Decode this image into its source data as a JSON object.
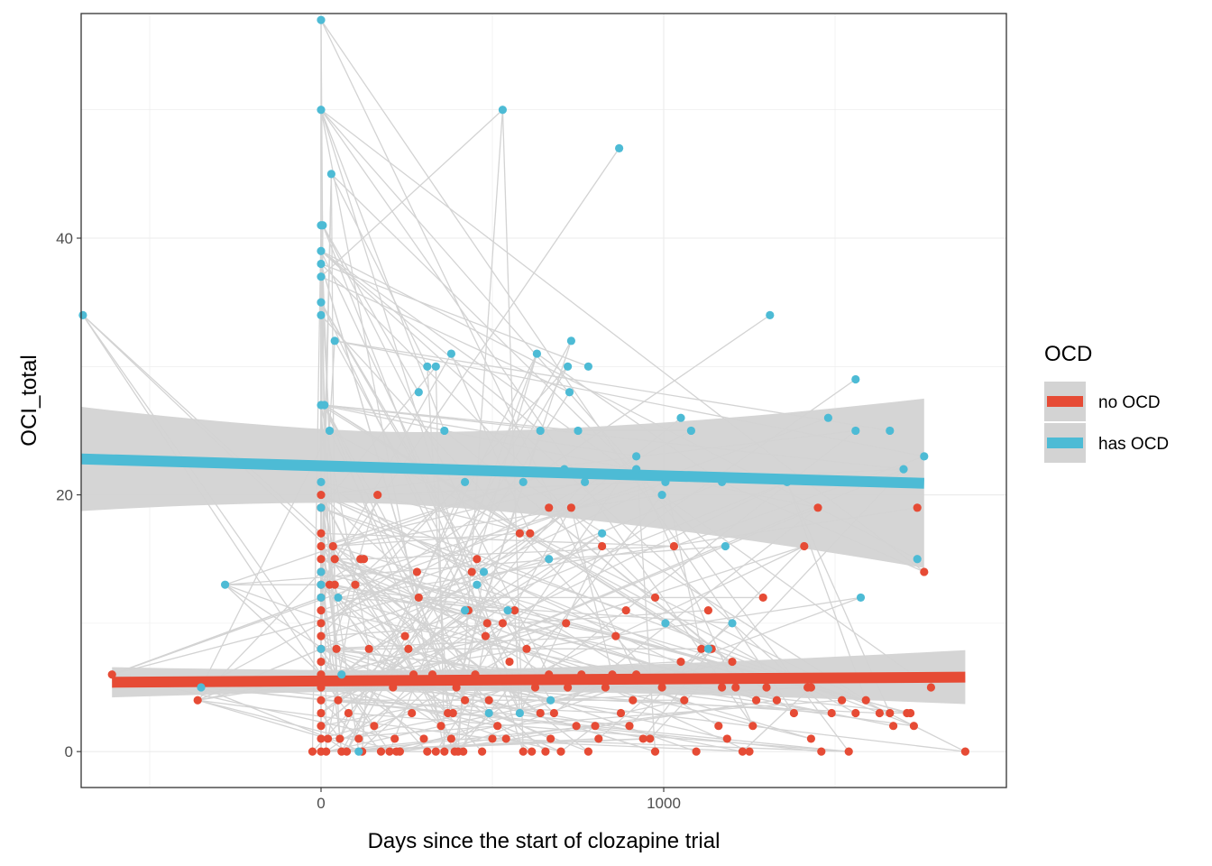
{
  "chart_data": {
    "type": "scatter",
    "xlabel": "Days since the start of clozapine trial",
    "ylabel": "OCI_total",
    "xlim": [
      -700,
      2000
    ],
    "ylim": [
      -2.8,
      57.5
    ],
    "x_ticks": [
      0,
      1000
    ],
    "y_ticks": [
      0,
      20,
      40
    ],
    "grid": true,
    "legend": {
      "title": "OCD",
      "position": "right",
      "entries": [
        {
          "label": "no OCD",
          "color": "#E64B35"
        },
        {
          "label": "has OCD",
          "color": "#4DBBD5"
        }
      ]
    },
    "colors": {
      "no_ocd": "#E64B35",
      "has_ocd": "#4DBBD5",
      "connector": "#D3D3D3",
      "ribbon": "#D3D3D3"
    },
    "series": [
      {
        "name": "has OCD",
        "color": "#4DBBD5",
        "points": [
          [
            -695,
            34
          ],
          [
            -350,
            5
          ],
          [
            -280,
            13
          ],
          [
            0,
            57
          ],
          [
            0,
            50
          ],
          [
            0,
            41
          ],
          [
            5,
            41
          ],
          [
            0,
            39
          ],
          [
            0,
            38
          ],
          [
            0,
            37
          ],
          [
            0,
            35
          ],
          [
            0,
            34
          ],
          [
            0,
            27
          ],
          [
            10,
            27
          ],
          [
            30,
            45
          ],
          [
            40,
            32
          ],
          [
            25,
            25
          ],
          [
            0,
            21
          ],
          [
            0,
            19
          ],
          [
            0,
            14
          ],
          [
            0,
            13
          ],
          [
            0,
            12
          ],
          [
            0,
            8
          ],
          [
            50,
            12
          ],
          [
            60,
            6
          ],
          [
            110,
            0
          ],
          [
            285,
            28
          ],
          [
            310,
            30
          ],
          [
            335,
            30
          ],
          [
            360,
            25
          ],
          [
            380,
            31
          ],
          [
            420,
            21
          ],
          [
            420,
            11
          ],
          [
            455,
            13
          ],
          [
            475,
            14
          ],
          [
            490,
            3
          ],
          [
            530,
            50
          ],
          [
            545,
            11
          ],
          [
            580,
            3
          ],
          [
            590,
            21
          ],
          [
            630,
            31
          ],
          [
            640,
            25
          ],
          [
            665,
            15
          ],
          [
            670,
            4
          ],
          [
            710,
            22
          ],
          [
            720,
            30
          ],
          [
            725,
            28
          ],
          [
            730,
            32
          ],
          [
            750,
            25
          ],
          [
            770,
            21
          ],
          [
            780,
            30
          ],
          [
            820,
            17
          ],
          [
            870,
            47
          ],
          [
            920,
            22
          ],
          [
            920,
            23
          ],
          [
            995,
            20
          ],
          [
            1005,
            10
          ],
          [
            1005,
            21
          ],
          [
            1050,
            26
          ],
          [
            1080,
            25
          ],
          [
            1130,
            8
          ],
          [
            1170,
            21
          ],
          [
            1180,
            16
          ],
          [
            1200,
            10
          ],
          [
            1310,
            34
          ],
          [
            1360,
            21
          ],
          [
            1480,
            26
          ],
          [
            1560,
            25
          ],
          [
            1560,
            29
          ],
          [
            1575,
            12
          ],
          [
            1660,
            25
          ],
          [
            1700,
            22
          ],
          [
            1740,
            15
          ],
          [
            1760,
            23
          ]
        ],
        "trend": {
          "x0": -700,
          "y0": 22.8,
          "x1": 1760,
          "y1": 20.9,
          "se0": 6.2,
          "se1": 6.6
        }
      },
      {
        "name": "no OCD",
        "color": "#E64B35",
        "points": [
          [
            -610,
            6
          ],
          [
            -360,
            4
          ],
          [
            -25,
            0
          ],
          [
            0,
            20
          ],
          [
            0,
            19
          ],
          [
            0,
            17
          ],
          [
            0,
            16
          ],
          [
            0,
            15
          ],
          [
            0,
            14
          ],
          [
            0,
            13
          ],
          [
            0,
            12
          ],
          [
            0,
            11
          ],
          [
            0,
            10
          ],
          [
            0,
            9
          ],
          [
            0,
            8
          ],
          [
            0,
            7
          ],
          [
            0,
            6
          ],
          [
            0,
            5
          ],
          [
            0,
            4
          ],
          [
            0,
            3
          ],
          [
            0,
            2
          ],
          [
            0,
            1
          ],
          [
            0,
            0
          ],
          [
            15,
            0
          ],
          [
            20,
            1
          ],
          [
            25,
            13
          ],
          [
            35,
            16
          ],
          [
            40,
            15
          ],
          [
            40,
            13
          ],
          [
            45,
            8
          ],
          [
            50,
            4
          ],
          [
            55,
            1
          ],
          [
            60,
            0
          ],
          [
            75,
            0
          ],
          [
            80,
            3
          ],
          [
            100,
            13
          ],
          [
            110,
            1
          ],
          [
            115,
            15
          ],
          [
            120,
            0
          ],
          [
            125,
            15
          ],
          [
            140,
            8
          ],
          [
            155,
            2
          ],
          [
            165,
            20
          ],
          [
            175,
            0
          ],
          [
            200,
            0
          ],
          [
            210,
            5
          ],
          [
            215,
            1
          ],
          [
            220,
            0
          ],
          [
            230,
            0
          ],
          [
            245,
            9
          ],
          [
            255,
            8
          ],
          [
            265,
            3
          ],
          [
            270,
            6
          ],
          [
            280,
            14
          ],
          [
            285,
            12
          ],
          [
            300,
            1
          ],
          [
            310,
            0
          ],
          [
            325,
            6
          ],
          [
            335,
            0
          ],
          [
            350,
            2
          ],
          [
            360,
            0
          ],
          [
            370,
            3
          ],
          [
            380,
            1
          ],
          [
            385,
            3
          ],
          [
            390,
            0
          ],
          [
            395,
            5
          ],
          [
            400,
            0
          ],
          [
            415,
            0
          ],
          [
            420,
            4
          ],
          [
            430,
            11
          ],
          [
            440,
            14
          ],
          [
            450,
            6
          ],
          [
            455,
            15
          ],
          [
            470,
            0
          ],
          [
            480,
            9
          ],
          [
            485,
            10
          ],
          [
            490,
            4
          ],
          [
            500,
            1
          ],
          [
            515,
            2
          ],
          [
            530,
            10
          ],
          [
            540,
            1
          ],
          [
            550,
            7
          ],
          [
            565,
            11
          ],
          [
            580,
            17
          ],
          [
            590,
            0
          ],
          [
            600,
            8
          ],
          [
            610,
            17
          ],
          [
            615,
            0
          ],
          [
            625,
            5
          ],
          [
            640,
            3
          ],
          [
            655,
            0
          ],
          [
            665,
            19
          ],
          [
            665,
            6
          ],
          [
            670,
            1
          ],
          [
            680,
            3
          ],
          [
            700,
            0
          ],
          [
            715,
            10
          ],
          [
            720,
            5
          ],
          [
            730,
            19
          ],
          [
            745,
            2
          ],
          [
            760,
            6
          ],
          [
            780,
            0
          ],
          [
            800,
            2
          ],
          [
            810,
            1
          ],
          [
            820,
            16
          ],
          [
            830,
            5
          ],
          [
            850,
            6
          ],
          [
            860,
            9
          ],
          [
            875,
            3
          ],
          [
            890,
            11
          ],
          [
            900,
            2
          ],
          [
            910,
            4
          ],
          [
            920,
            6
          ],
          [
            940,
            1
          ],
          [
            960,
            1
          ],
          [
            975,
            12
          ],
          [
            975,
            0
          ],
          [
            995,
            5
          ],
          [
            1030,
            16
          ],
          [
            1050,
            7
          ],
          [
            1060,
            4
          ],
          [
            1095,
            0
          ],
          [
            1110,
            8
          ],
          [
            1130,
            11
          ],
          [
            1140,
            8
          ],
          [
            1160,
            2
          ],
          [
            1170,
            5
          ],
          [
            1185,
            1
          ],
          [
            1200,
            7
          ],
          [
            1210,
            5
          ],
          [
            1230,
            0
          ],
          [
            1250,
            0
          ],
          [
            1260,
            2
          ],
          [
            1270,
            4
          ],
          [
            1290,
            12
          ],
          [
            1300,
            5
          ],
          [
            1330,
            4
          ],
          [
            1380,
            3
          ],
          [
            1410,
            16
          ],
          [
            1420,
            5
          ],
          [
            1430,
            5
          ],
          [
            1430,
            1
          ],
          [
            1450,
            19
          ],
          [
            1460,
            0
          ],
          [
            1490,
            3
          ],
          [
            1520,
            4
          ],
          [
            1540,
            0
          ],
          [
            1560,
            3
          ],
          [
            1590,
            4
          ],
          [
            1630,
            3
          ],
          [
            1660,
            3
          ],
          [
            1670,
            2
          ],
          [
            1710,
            3
          ],
          [
            1720,
            3
          ],
          [
            1730,
            2
          ],
          [
            1740,
            19
          ],
          [
            1760,
            14
          ],
          [
            1780,
            5
          ],
          [
            1880,
            0
          ]
        ],
        "trend": {
          "x0": -610,
          "y0": 5.4,
          "x1": 1880,
          "y1": 5.8,
          "se0": 1.8,
          "se1": 2.1
        }
      }
    ]
  }
}
